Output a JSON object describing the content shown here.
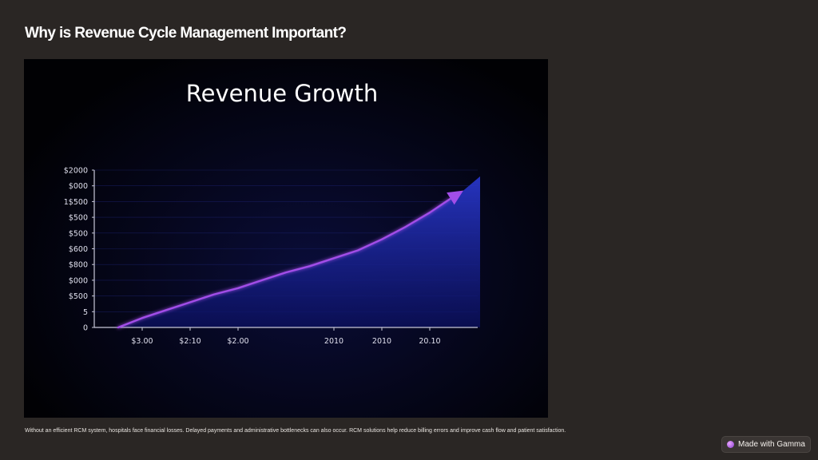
{
  "slide": {
    "title": "Why is Revenue Cycle Management Important?",
    "caption": "Without an efficient RCM system, hospitals face financial losses. Delayed payments and administrative bottlenecks can also occur. RCM solutions help reduce billing errors and improve cash flow and patient satisfaction."
  },
  "badge": {
    "label": "Made with Gamma",
    "icon": "gamma-logo-icon"
  },
  "chart_data": {
    "type": "area",
    "title": "Revenue Growth",
    "xlabel": "",
    "ylabel": "",
    "y_tick_labels": [
      "0",
      "5",
      "$500",
      "$000",
      "$800",
      "$600",
      "$500",
      "$500",
      "1$500",
      "$000",
      "$2000"
    ],
    "x_tick_labels": [
      "$3.00",
      "$2:10",
      "$2.00",
      "2010",
      "2010",
      "20.10"
    ],
    "series": [
      {
        "values": [
          0,
          0.6,
          1.1,
          1.6,
          2.1,
          2.5,
          3.0,
          3.5,
          3.9,
          4.4,
          4.9,
          5.6,
          6.4,
          7.3,
          8.7,
          9.6
        ]
      }
    ],
    "x": [
      0.0,
      0.5,
      1.0,
      1.5,
      2.0,
      2.5,
      3.0,
      3.5,
      4.0,
      4.5,
      5.0,
      5.5,
      6.0,
      6.5,
      7.2,
      7.55
    ],
    "x_tick_positions": [
      0.5,
      1.5,
      2.5,
      4.5,
      5.5,
      6.5
    ],
    "xlim": [
      -0.5,
      7.5
    ],
    "ylim": [
      0,
      10
    ],
    "grid": true,
    "colors": {
      "line": "#a24ee8",
      "fill_top": "#2836c8",
      "fill_bottom": "#0b1060",
      "axis": "#c8c8d8",
      "text": "#e0e0ee",
      "title": "#ffffff"
    }
  }
}
